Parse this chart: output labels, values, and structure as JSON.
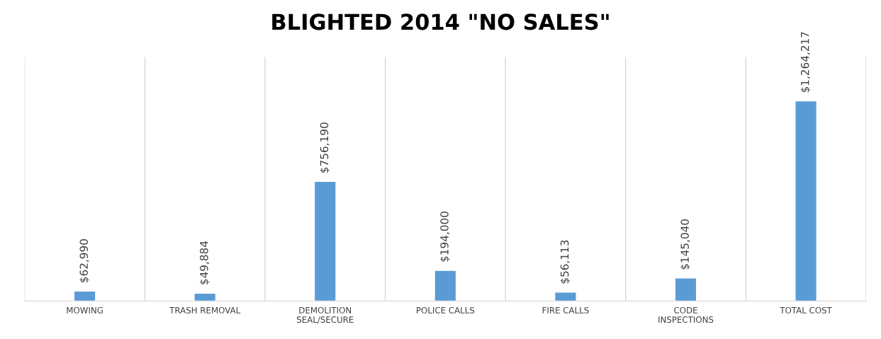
{
  "chart_data": {
    "type": "bar",
    "title": "BLIGHTED 2014 \"NO SALES\"",
    "categories": [
      "MOWING",
      "TRASH REMOVAL",
      "DEMOLITION\nSEAL/SECURE",
      "POLICE CALLS",
      "FIRE CALLS",
      "CODE\nINSPECTIONS",
      "TOTAL COST"
    ],
    "values": [
      62990,
      49884,
      756190,
      194000,
      56113,
      145040,
      1264217
    ],
    "value_labels": [
      "$62,990",
      "$49,884",
      "$756,190",
      "$194,000",
      "$56,113",
      "$145,040",
      "$1,264,217"
    ],
    "color": "#5b9bd5",
    "grid": "x"
  }
}
